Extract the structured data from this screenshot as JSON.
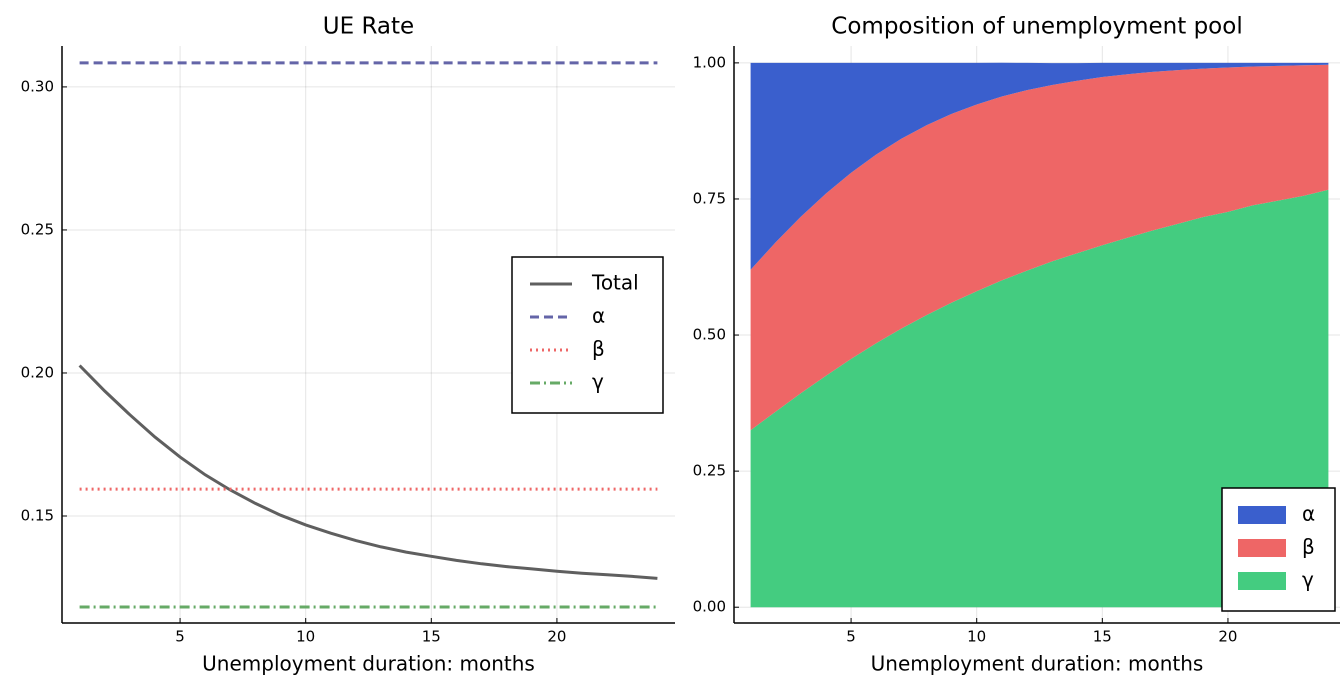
{
  "chart_data": [
    {
      "type": "line",
      "title": "UE Rate",
      "x_label": "Unemployment duration: months",
      "x": [
        1,
        2,
        3,
        4,
        5,
        6,
        7,
        8,
        9,
        10,
        11,
        12,
        13,
        14,
        15,
        16,
        17,
        18,
        19,
        20,
        21,
        22,
        23,
        24
      ],
      "series": [
        {
          "name": "Total",
          "color": "#5f5f5f",
          "dash": "solid",
          "values": [
            0.2026,
            0.1937,
            0.1854,
            0.1776,
            0.1706,
            0.1644,
            0.1591,
            0.1544,
            0.1503,
            0.1469,
            0.144,
            0.1414,
            0.1392,
            0.1374,
            0.1359,
            0.1345,
            0.1333,
            0.1323,
            0.1315,
            0.1307,
            0.13,
            0.1295,
            0.1289,
            0.1282
          ]
        },
        {
          "name": "α",
          "color": "#6465a8",
          "dash": "dashed",
          "values": [
            0.3084,
            0.3084,
            0.3084,
            0.3084,
            0.3084,
            0.3084,
            0.3084,
            0.3084,
            0.3084,
            0.3084,
            0.3084,
            0.3084,
            0.3084,
            0.3084,
            0.3084,
            0.3084,
            0.3084,
            0.3084,
            0.3084,
            0.3084,
            0.3084,
            0.3084,
            0.3084,
            0.3084
          ]
        },
        {
          "name": "β",
          "color": "#ee6767",
          "dash": "dotted",
          "values": [
            0.1594,
            0.1594,
            0.1594,
            0.1594,
            0.1594,
            0.1594,
            0.1594,
            0.1594,
            0.1594,
            0.1594,
            0.1594,
            0.1594,
            0.1594,
            0.1594,
            0.1594,
            0.1594,
            0.1594,
            0.1594,
            0.1594,
            0.1594,
            0.1594,
            0.1594,
            0.1594,
            0.1594
          ]
        },
        {
          "name": "γ",
          "color": "#66aa66",
          "dash": "dashdot",
          "values": [
            0.1182,
            0.1182,
            0.1182,
            0.1182,
            0.1182,
            0.1182,
            0.1182,
            0.1182,
            0.1182,
            0.1182,
            0.1182,
            0.1182,
            0.1182,
            0.1182,
            0.1182,
            0.1182,
            0.1182,
            0.1182,
            0.1182,
            0.1182,
            0.1182,
            0.1182,
            0.1182,
            0.1182
          ]
        }
      ],
      "xlim": [
        0.3,
        24.7
      ],
      "xticks": [
        5,
        10,
        15,
        20
      ],
      "ylim": [
        0.1126,
        0.3143
      ],
      "yticks": [
        0.15,
        {
          "value": 0.2,
          "label": "0.20"
        },
        0.25,
        {
          "value": 0.3,
          "label": "0.30"
        }
      ],
      "grid": true,
      "legend": "right"
    },
    {
      "type": "stacked_area",
      "title": "Composition of unemployment pool",
      "x_label": "Unemployment duration: months",
      "x": [
        1,
        2,
        3,
        4,
        5,
        6,
        7,
        8,
        9,
        10,
        11,
        12,
        13,
        14,
        15,
        16,
        17,
        18,
        19,
        20,
        21,
        22,
        23,
        24
      ],
      "series": [
        {
          "name": "α",
          "color": "#3a5fcd",
          "values": [
            0.38,
            0.3296,
            0.2827,
            0.24,
            0.2018,
            0.1683,
            0.1394,
            0.1147,
            0.0937,
            0.0765,
            0.0619,
            0.0499,
            0.0402,
            0.0323,
            0.0259,
            0.0208,
            0.0166,
            0.0132,
            0.0106,
            0.0085,
            0.0067,
            0.0055,
            0.0044,
            0.0034
          ]
        },
        {
          "name": "β",
          "color": "#ee6666",
          "values": [
            0.295,
            0.311,
            0.3243,
            0.3346,
            0.342,
            0.3466,
            0.3487,
            0.3486,
            0.3467,
            0.3429,
            0.3379,
            0.3316,
            0.3242,
            0.3169,
            0.3092,
            0.3003,
            0.2914,
            0.2826,
            0.2727,
            0.2652,
            0.2549,
            0.2476,
            0.2399,
            0.2298
          ]
        },
        {
          "name": "γ",
          "color": "#44cc80",
          "values": [
            0.325,
            0.3594,
            0.393,
            0.4254,
            0.4562,
            0.4851,
            0.5119,
            0.5367,
            0.5596,
            0.5806,
            0.6004,
            0.6184,
            0.6352,
            0.6503,
            0.6649,
            0.6789,
            0.692,
            0.7042,
            0.7167,
            0.7263,
            0.7384,
            0.7469,
            0.7557,
            0.7668
          ]
        }
      ],
      "xlim": [
        0.34,
        24.46
      ],
      "xticks": [
        5,
        10,
        15,
        20
      ],
      "ylim": [
        -0.029,
        1.031
      ],
      "yticks": [
        {
          "value": 0,
          "label": "0.00"
        },
        0.25,
        {
          "value": 0.5,
          "label": "0.50"
        },
        0.75,
        {
          "value": 1,
          "label": "1.00"
        }
      ],
      "grid": true,
      "legend": "lower right"
    }
  ]
}
